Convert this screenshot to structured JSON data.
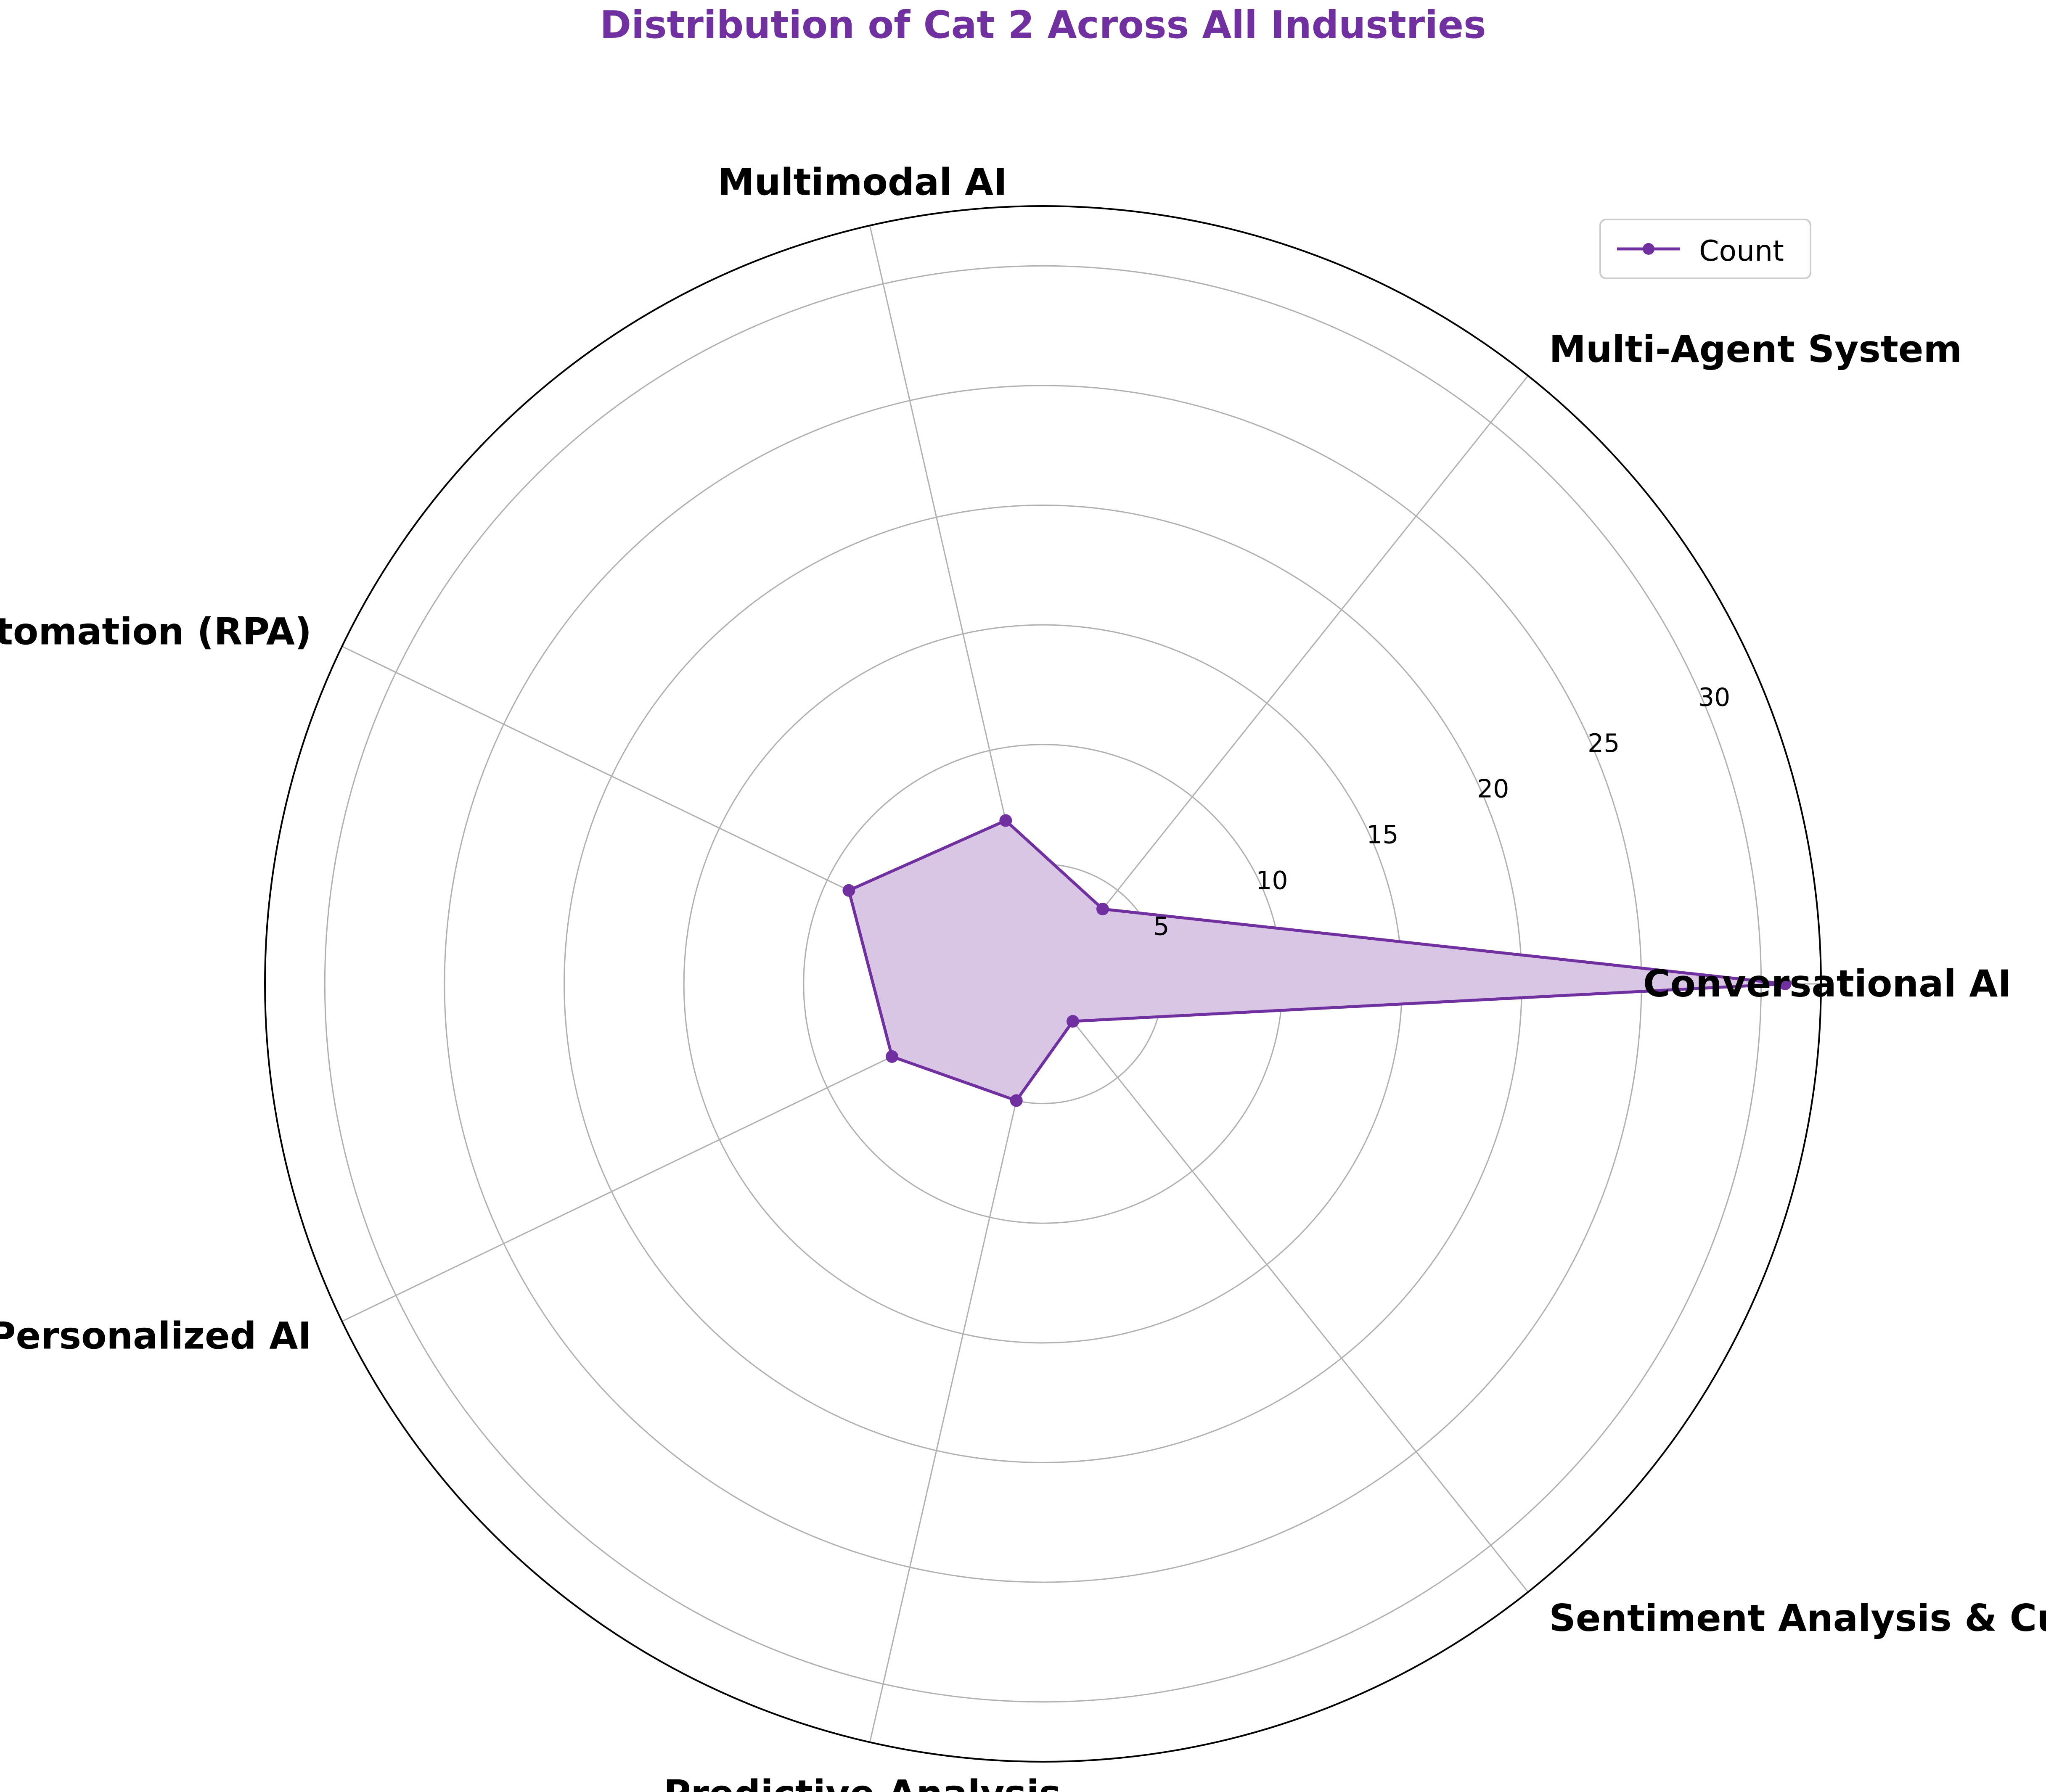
{
  "chart_data": {
    "type": "radar",
    "title": "Distribution of Cat 2 Across All Industries",
    "categories": [
      "Conversational AI",
      "Multi-Agent System",
      "Multimodal AI",
      "Process Automation (RPA)",
      "Marketing & Personalized AI",
      "Predictive Analysis",
      "Sentiment Analysis & Customer Insights"
    ],
    "series": [
      {
        "name": "Count",
        "values": [
          31,
          4,
          7,
          9,
          7,
          5,
          2
        ]
      }
    ],
    "rlim": [
      0,
      32.5
    ],
    "rticks": [
      5,
      10,
      15,
      20,
      25,
      30
    ],
    "grid": true,
    "legend": "top-right",
    "colors": {
      "line": "#7030a0",
      "fill": "#d9c6e5",
      "grid": "#b0b0b0",
      "title": "#7030a0",
      "text": "#000000"
    }
  }
}
